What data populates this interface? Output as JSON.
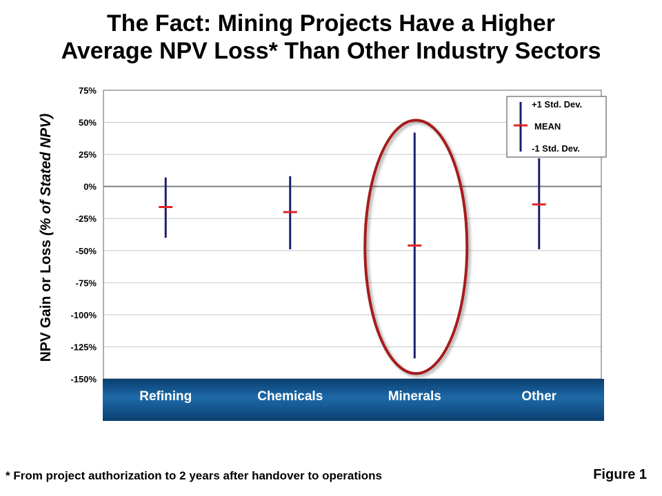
{
  "title": {
    "line1": "The Fact: Mining Projects Have a Higher",
    "line2": "Average NPV Loss* Than Other Industry Sectors"
  },
  "chart_data": {
    "type": "error_bar",
    "ylabel_main": "NPV Gain or Loss ",
    "ylabel_italic": "(% of Stated NPV)",
    "ylim": [
      -150,
      75
    ],
    "yticks": [
      75,
      50,
      25,
      0,
      -25,
      -50,
      -75,
      -100,
      -125,
      -150
    ],
    "ytick_labels": [
      "75%",
      "50%",
      "25%",
      "0%",
      "-25%",
      "-50%",
      "-75%",
      "-100%",
      "-125%",
      "-150%"
    ],
    "categories": [
      "Refining",
      "Chemicals",
      "Minerals",
      "Other"
    ],
    "mean": [
      -16,
      -20,
      -46,
      -14
    ],
    "plus_1_std": [
      7,
      8,
      42,
      22
    ],
    "minus_1_std": [
      -40,
      -49,
      -134,
      -49
    ],
    "grid": true,
    "legend": {
      "placement": "top-right",
      "upper": "+1 Std. Dev.",
      "mean": "MEAN",
      "lower": "-1 Std. Dev."
    },
    "highlight": "Minerals",
    "colors": {
      "bar": "#1a1f6e",
      "mean": "#e02424",
      "highlight": "#a61c1c",
      "band_dark": "#0b3f70",
      "band_light": "#1d6aa8",
      "band_text": "#ffffff"
    }
  },
  "footnote": "* From project authorization to 2 years after handover to operations",
  "figure_label": "Figure 1"
}
